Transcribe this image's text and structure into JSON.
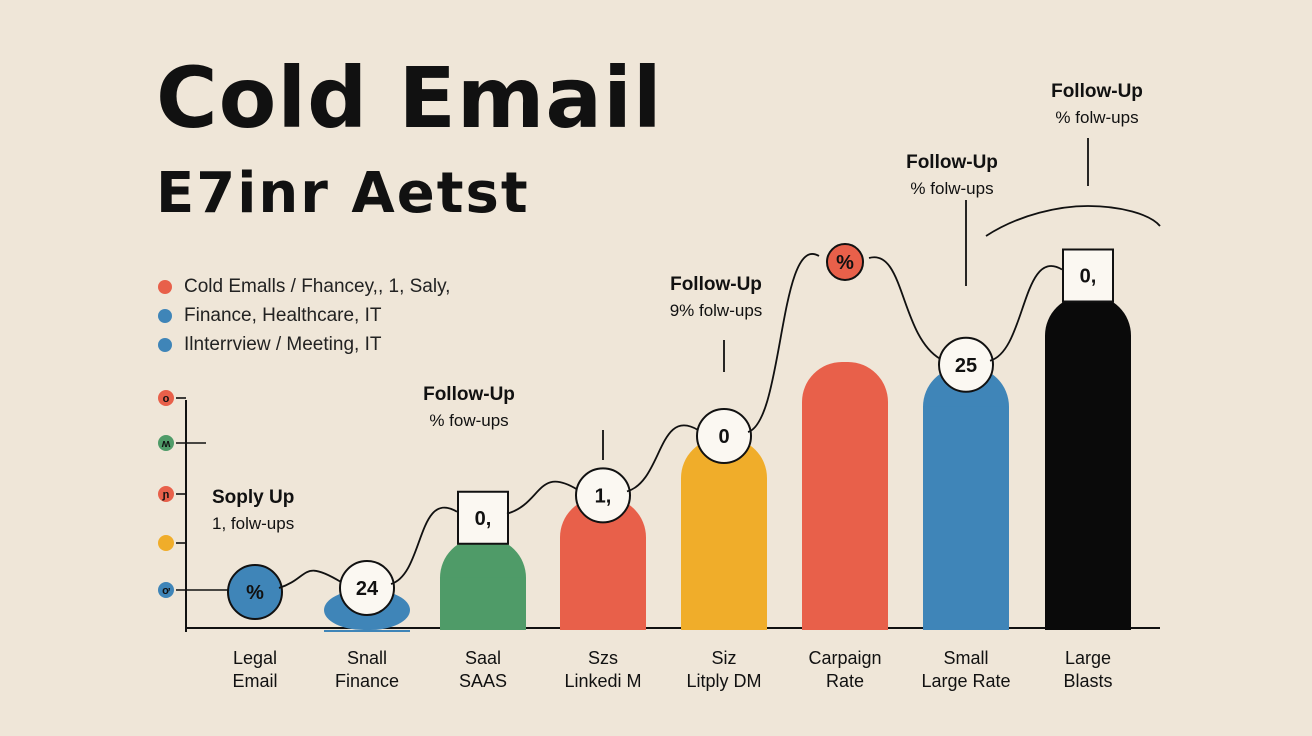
{
  "title": "Cold Email",
  "subtitle": "E7inr Aetst",
  "legend": [
    {
      "label": "Cold Emalls / Fhancey,, 1, Saly,",
      "color": "#e8604a"
    },
    {
      "label": "Finance,  Healthcare, IT",
      "color": "#3f85b8"
    },
    {
      "label": "Ilnterrview / Meeting, IT",
      "color": "#3f85b8"
    }
  ],
  "y_markers": [
    {
      "label": "o",
      "color": "#e8604a"
    },
    {
      "label": "ʍ",
      "color": "#4f9b68"
    },
    {
      "label": "ɲ",
      "color": "#e8604a"
    },
    {
      "label": "",
      "color": "#f0ad2a"
    },
    {
      "label": "ơ",
      "color": "#3f85b8"
    }
  ],
  "chart_data": {
    "type": "bar",
    "categories": [
      [
        "Legal",
        "Email"
      ],
      [
        "Snall",
        "Finance"
      ],
      [
        "Saal",
        "SAAS"
      ],
      [
        "Szs",
        "Linkedi M"
      ],
      [
        "Siz",
        "Litply DM"
      ],
      [
        "Carpaign",
        "Rate"
      ],
      [
        "Small",
        "Large Rate"
      ],
      [
        "Large",
        "Blasts"
      ]
    ],
    "values": [
      0,
      1.6,
      3.8,
      5.5,
      8.0,
      11.2,
      11.0,
      14.0
    ],
    "ylim": [
      0,
      16
    ],
    "colors": [
      "#3f85b8",
      "#3f85b8",
      "#4f9b68",
      "#e8604a",
      "#f0ad2a",
      "#e8604a",
      "#3f85b8",
      "#0a0a0a"
    ],
    "badges": [
      "%",
      "24",
      "0,",
      "1,",
      "0",
      "%",
      "25",
      "0,"
    ],
    "annotations": [
      {
        "bar": 0,
        "lines": [
          "Soply Up",
          "1, folw-ups"
        ]
      },
      {
        "bar": 2,
        "lines": [
          "Follow-Up",
          "% fow-ups"
        ]
      },
      {
        "bar": 4,
        "lines": [
          "Follow-Up",
          "9% folw-ups"
        ]
      },
      {
        "bar": 6,
        "lines": [
          "Follow-Up",
          "% folw-ups"
        ]
      },
      {
        "bar": 7,
        "lines": [
          "Follow-Up",
          "% folw-ups"
        ]
      }
    ],
    "grid": false,
    "legend_position": "top-left"
  }
}
